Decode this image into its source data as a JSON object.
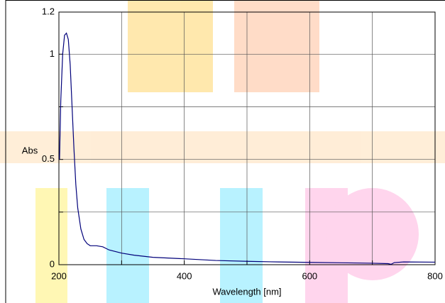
{
  "chart_data": {
    "type": "line",
    "x_label": "Wavelength [nm]",
    "y_label": "Abs",
    "xlim": [
      200,
      800
    ],
    "xticks": [
      200,
      400,
      600,
      800
    ],
    "x_minor_ticks": [
      300,
      500,
      700
    ],
    "ylim": [
      0,
      1.2
    ],
    "yticks": [
      0,
      0.5,
      1,
      1.2
    ],
    "y_minor_ticks": [
      0.25,
      0.75
    ],
    "grid": true,
    "series": [
      {
        "name": "Abs",
        "color": "#00007a",
        "x": [
          201,
          203,
          206,
          209,
          212,
          215,
          218,
          221,
          224,
          227,
          230,
          235,
          240,
          245,
          250,
          260,
          270,
          280,
          300,
          320,
          350,
          400,
          450,
          500,
          550,
          600,
          650,
          700,
          725,
          730,
          735,
          750,
          800
        ],
        "values": [
          0.5,
          0.78,
          1.0,
          1.09,
          1.1,
          1.07,
          0.95,
          0.75,
          0.55,
          0.38,
          0.27,
          0.17,
          0.12,
          0.1,
          0.09,
          0.09,
          0.085,
          0.07,
          0.055,
          0.045,
          0.035,
          0.028,
          0.02,
          0.016,
          0.013,
          0.011,
          0.009,
          0.007,
          0.005,
          0.002,
          0.01,
          0.013,
          0.012
        ]
      }
    ]
  }
}
